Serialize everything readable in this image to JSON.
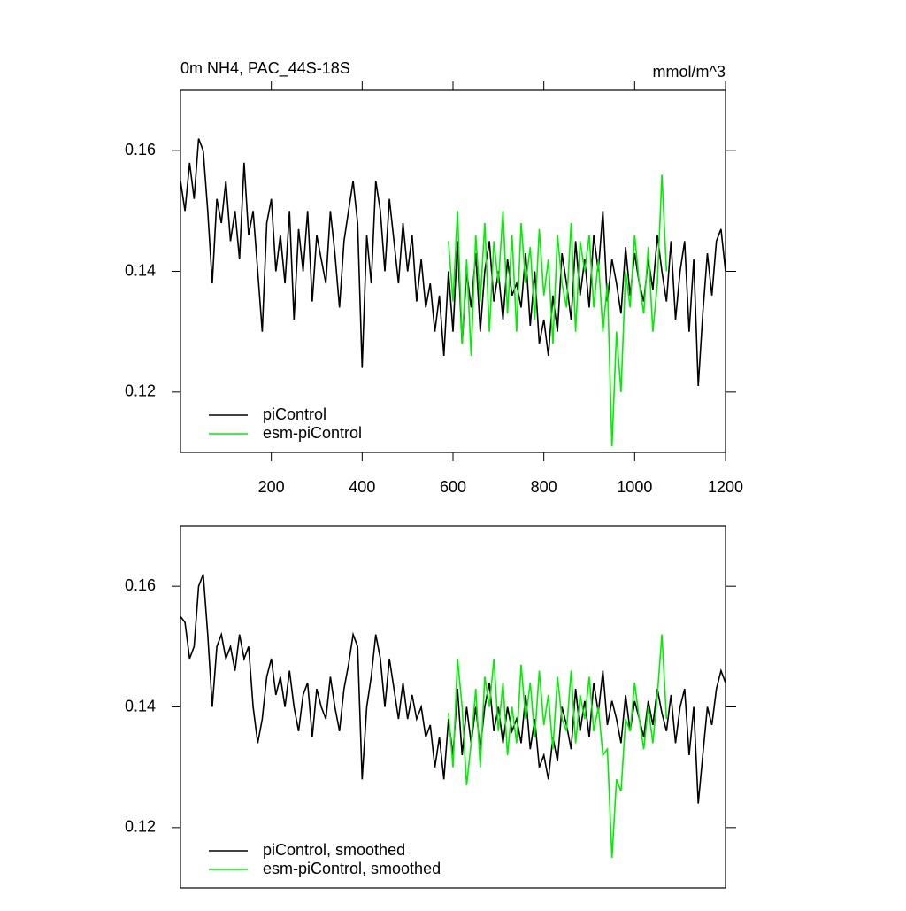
{
  "chart_data": [
    {
      "type": "line",
      "title": "0m NH4, PAC_44S-18S",
      "units": "mmol/m^3",
      "xlim": [
        0,
        1200
      ],
      "ylim": [
        0.11,
        0.17
      ],
      "xticks": [
        200,
        400,
        600,
        800,
        1000,
        1200
      ],
      "yticks": [
        0.12,
        0.14,
        0.16
      ],
      "legend": "lower-left",
      "series": [
        {
          "name": "piControl",
          "color": "#000000",
          "x": [
            0,
            10,
            20,
            30,
            40,
            50,
            60,
            70,
            80,
            90,
            100,
            110,
            120,
            130,
            140,
            150,
            160,
            170,
            180,
            190,
            200,
            210,
            220,
            230,
            240,
            250,
            260,
            270,
            280,
            290,
            300,
            310,
            320,
            330,
            340,
            350,
            360,
            370,
            380,
            390,
            400,
            410,
            420,
            430,
            440,
            450,
            460,
            470,
            480,
            490,
            500,
            510,
            520,
            530,
            540,
            550,
            560,
            570,
            580,
            590,
            600,
            610,
            620,
            630,
            640,
            650,
            660,
            670,
            680,
            690,
            700,
            710,
            720,
            730,
            740,
            750,
            760,
            770,
            780,
            790,
            800,
            810,
            820,
            830,
            840,
            850,
            860,
            870,
            880,
            890,
            900,
            910,
            920,
            930,
            940,
            950,
            960,
            970,
            980,
            990,
            1000,
            1010,
            1020,
            1030,
            1040,
            1050,
            1060,
            1070,
            1080,
            1090,
            1100,
            1110,
            1120,
            1130,
            1140,
            1150,
            1160,
            1170,
            1180,
            1190,
            1200
          ],
          "values": [
            0.155,
            0.15,
            0.158,
            0.152,
            0.162,
            0.16,
            0.15,
            0.138,
            0.152,
            0.148,
            0.155,
            0.145,
            0.15,
            0.142,
            0.158,
            0.146,
            0.15,
            0.14,
            0.13,
            0.148,
            0.152,
            0.14,
            0.146,
            0.138,
            0.15,
            0.132,
            0.147,
            0.14,
            0.15,
            0.135,
            0.146,
            0.142,
            0.138,
            0.15,
            0.143,
            0.134,
            0.145,
            0.15,
            0.155,
            0.148,
            0.124,
            0.146,
            0.138,
            0.155,
            0.15,
            0.14,
            0.152,
            0.145,
            0.138,
            0.148,
            0.14,
            0.146,
            0.135,
            0.142,
            0.134,
            0.138,
            0.13,
            0.136,
            0.126,
            0.14,
            0.13,
            0.145,
            0.128,
            0.14,
            0.134,
            0.143,
            0.13,
            0.14,
            0.145,
            0.135,
            0.14,
            0.132,
            0.142,
            0.136,
            0.138,
            0.134,
            0.143,
            0.131,
            0.14,
            0.128,
            0.132,
            0.126,
            0.136,
            0.13,
            0.143,
            0.138,
            0.132,
            0.145,
            0.136,
            0.142,
            0.134,
            0.146,
            0.14,
            0.15,
            0.135,
            0.142,
            0.138,
            0.133,
            0.144,
            0.136,
            0.143,
            0.138,
            0.135,
            0.142,
            0.137,
            0.146,
            0.14,
            0.135,
            0.145,
            0.132,
            0.14,
            0.145,
            0.13,
            0.142,
            0.121,
            0.133,
            0.143,
            0.136,
            0.145,
            0.147,
            0.14
          ]
        },
        {
          "name": "esm-piControl",
          "color": "#00ee00",
          "x": [
            590,
            600,
            610,
            620,
            630,
            640,
            650,
            660,
            670,
            680,
            690,
            700,
            710,
            720,
            730,
            740,
            750,
            760,
            770,
            780,
            790,
            800,
            810,
            820,
            830,
            840,
            850,
            860,
            870,
            880,
            890,
            900,
            910,
            920,
            930,
            940,
            950,
            960,
            970,
            980,
            990,
            1000,
            1010,
            1020,
            1030,
            1040,
            1050,
            1060,
            1070
          ],
          "values": [
            0.145,
            0.135,
            0.15,
            0.128,
            0.142,
            0.126,
            0.146,
            0.135,
            0.148,
            0.13,
            0.145,
            0.138,
            0.15,
            0.133,
            0.146,
            0.13,
            0.148,
            0.138,
            0.144,
            0.132,
            0.147,
            0.136,
            0.142,
            0.128,
            0.146,
            0.138,
            0.134,
            0.148,
            0.13,
            0.145,
            0.14,
            0.146,
            0.134,
            0.142,
            0.13,
            0.138,
            0.111,
            0.13,
            0.12,
            0.14,
            0.134,
            0.146,
            0.138,
            0.133,
            0.144,
            0.13,
            0.138,
            0.156,
            0.14
          ]
        }
      ]
    },
    {
      "type": "line",
      "xlim": [
        0,
        1200
      ],
      "ylim": [
        0.11,
        0.17
      ],
      "yticks": [
        0.12,
        0.14,
        0.16
      ],
      "legend": "lower-left",
      "series": [
        {
          "name": "piControl, smoothed",
          "color": "#000000",
          "x": [
            0,
            10,
            20,
            30,
            40,
            50,
            60,
            70,
            80,
            90,
            100,
            110,
            120,
            130,
            140,
            150,
            160,
            170,
            180,
            190,
            200,
            210,
            220,
            230,
            240,
            250,
            260,
            270,
            280,
            290,
            300,
            310,
            320,
            330,
            340,
            350,
            360,
            370,
            380,
            390,
            400,
            410,
            420,
            430,
            440,
            450,
            460,
            470,
            480,
            490,
            500,
            510,
            520,
            530,
            540,
            550,
            560,
            570,
            580,
            590,
            600,
            610,
            620,
            630,
            640,
            650,
            660,
            670,
            680,
            690,
            700,
            710,
            720,
            730,
            740,
            750,
            760,
            770,
            780,
            790,
            800,
            810,
            820,
            830,
            840,
            850,
            860,
            870,
            880,
            890,
            900,
            910,
            920,
            930,
            940,
            950,
            960,
            970,
            980,
            990,
            1000,
            1010,
            1020,
            1030,
            1040,
            1050,
            1060,
            1070,
            1080,
            1090,
            1100,
            1110,
            1120,
            1130,
            1140,
            1150,
            1160,
            1170,
            1180,
            1190,
            1200
          ],
          "values": [
            0.155,
            0.154,
            0.148,
            0.15,
            0.16,
            0.162,
            0.152,
            0.14,
            0.15,
            0.152,
            0.148,
            0.15,
            0.146,
            0.152,
            0.148,
            0.15,
            0.14,
            0.134,
            0.138,
            0.145,
            0.148,
            0.142,
            0.145,
            0.14,
            0.146,
            0.14,
            0.136,
            0.142,
            0.144,
            0.135,
            0.143,
            0.14,
            0.138,
            0.145,
            0.14,
            0.136,
            0.143,
            0.147,
            0.152,
            0.15,
            0.128,
            0.14,
            0.145,
            0.152,
            0.148,
            0.14,
            0.148,
            0.143,
            0.138,
            0.144,
            0.138,
            0.142,
            0.138,
            0.14,
            0.135,
            0.137,
            0.13,
            0.135,
            0.128,
            0.138,
            0.132,
            0.143,
            0.132,
            0.14,
            0.134,
            0.14,
            0.133,
            0.14,
            0.144,
            0.136,
            0.14,
            0.134,
            0.14,
            0.136,
            0.138,
            0.134,
            0.142,
            0.133,
            0.138,
            0.13,
            0.132,
            0.128,
            0.135,
            0.131,
            0.14,
            0.137,
            0.133,
            0.143,
            0.136,
            0.141,
            0.135,
            0.144,
            0.139,
            0.146,
            0.137,
            0.141,
            0.138,
            0.134,
            0.142,
            0.136,
            0.141,
            0.138,
            0.135,
            0.141,
            0.137,
            0.143,
            0.139,
            0.136,
            0.142,
            0.134,
            0.14,
            0.143,
            0.132,
            0.14,
            0.124,
            0.132,
            0.14,
            0.137,
            0.143,
            0.146,
            0.144
          ]
        },
        {
          "name": "esm-piControl, smoothed",
          "color": "#00ee00",
          "x": [
            590,
            600,
            610,
            620,
            630,
            640,
            650,
            660,
            670,
            680,
            690,
            700,
            710,
            720,
            730,
            740,
            750,
            760,
            770,
            780,
            790,
            800,
            810,
            820,
            830,
            840,
            850,
            860,
            870,
            880,
            890,
            900,
            910,
            920,
            930,
            940,
            950,
            960,
            970,
            980,
            990,
            1000,
            1010,
            1020,
            1030,
            1040,
            1050,
            1060,
            1070
          ],
          "values": [
            0.139,
            0.13,
            0.148,
            0.14,
            0.127,
            0.134,
            0.143,
            0.13,
            0.145,
            0.14,
            0.148,
            0.136,
            0.144,
            0.132,
            0.14,
            0.134,
            0.147,
            0.138,
            0.144,
            0.135,
            0.146,
            0.137,
            0.142,
            0.133,
            0.145,
            0.138,
            0.136,
            0.146,
            0.134,
            0.142,
            0.138,
            0.145,
            0.136,
            0.14,
            0.132,
            0.133,
            0.115,
            0.128,
            0.126,
            0.138,
            0.136,
            0.144,
            0.138,
            0.133,
            0.14,
            0.134,
            0.142,
            0.152,
            0.138
          ]
        }
      ]
    }
  ]
}
